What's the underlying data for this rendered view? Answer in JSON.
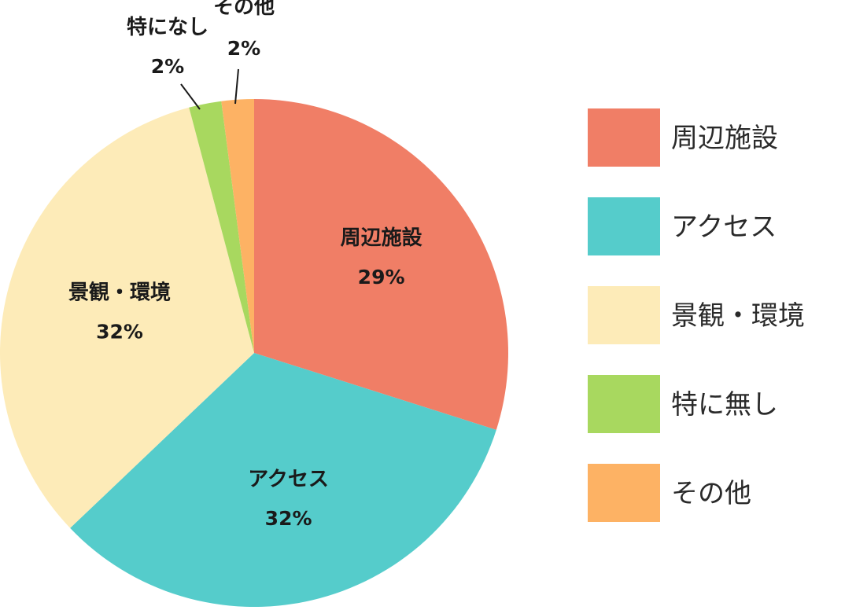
{
  "chart_data": {
    "type": "pie",
    "slices": [
      {
        "label": "周辺施設",
        "legend_label": "周辺施設",
        "value": 29,
        "value_label": "29%",
        "color": "#F07E66"
      },
      {
        "label": "アクセス",
        "legend_label": "アクセス",
        "value": 32,
        "value_label": "32%",
        "color": "#55CCCB"
      },
      {
        "label": "景観・環境",
        "legend_label": "景観・環境",
        "value": 32,
        "value_label": "32%",
        "color": "#FDEBB8"
      },
      {
        "label": "特になし",
        "legend_label": "特に無し",
        "value": 2,
        "value_label": "2%",
        "color": "#A8D85F"
      },
      {
        "label": "その他",
        "legend_label": "その他",
        "value": 2,
        "value_label": "2%",
        "color": "#FDB264"
      }
    ],
    "start_angle": "12 o'clock",
    "direction": "clockwise",
    "legend_position": "right"
  }
}
